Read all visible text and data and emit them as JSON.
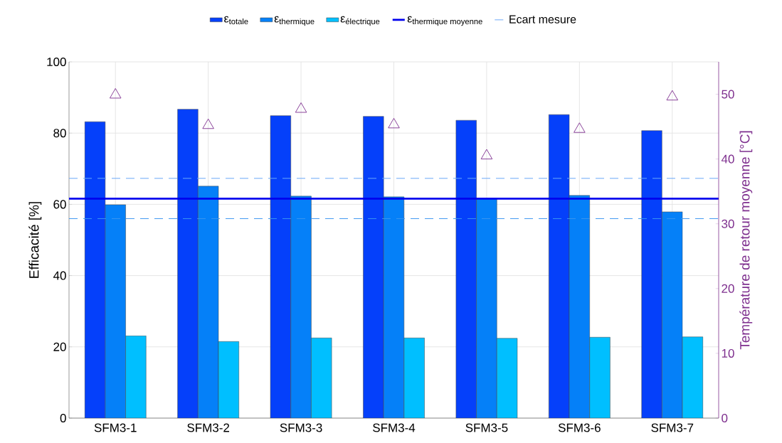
{
  "chart_data": {
    "type": "bar",
    "categories": [
      "SFM3-1",
      "SFM3-2",
      "SFM3-3",
      "SFM3-4",
      "SFM3-5",
      "SFM3-6",
      "SFM3-7"
    ],
    "ylabel": "Efficacité [%]",
    "y2label": "Température de retour moyenne [°C]",
    "ylim": [
      0,
      100
    ],
    "yticks": [
      0,
      20,
      40,
      60,
      80,
      100
    ],
    "y2lim": [
      0,
      55
    ],
    "y2ticks": [
      0,
      10,
      20,
      30,
      40,
      50
    ],
    "grid": true,
    "legend": "top",
    "series": [
      {
        "name": "\\text{ε}_{\\text{totale}}",
        "color": "#0540fa",
        "values": [
          83.2,
          86.7,
          84.9,
          84.7,
          83.6,
          85.2,
          80.7
        ]
      },
      {
        "name": "\\text{ε}_{\\text{thermique}}",
        "color": "#0580f8",
        "values": [
          59.9,
          65.1,
          62.3,
          62.1,
          61.7,
          62.5,
          57.9
        ]
      },
      {
        "name": "\\text{ε}_{\\text{électrique}}",
        "color": "#00bfff",
        "values": [
          23.1,
          21.5,
          22.5,
          22.5,
          22.4,
          22.7,
          22.8
        ]
      },
      {
        "type": "scatter",
        "axis": "y2",
        "marker": "triangle",
        "color": "#7e2f8e",
        "x": [
          "SFM3-1",
          "SFM3-2",
          "SFM3-3",
          "SFM3-4",
          "SFM3-5",
          "SFM3-6",
          "SFM3-7"
        ],
        "values": [
          49.9,
          45.2,
          47.7,
          45.3,
          40.5,
          44.6,
          49.6
        ]
      }
    ],
    "ref_lines": [
      {
        "axis": "y",
        "value": 61.6,
        "label": "\\text{ε}_{\\text{thermique moyenne}}",
        "color": "#0000ee",
        "line_style": "solid"
      },
      {
        "axis": "y",
        "value": 67.3,
        "label": "Ecart mesure",
        "color": "#6aa8f8",
        "line_style": "dashed"
      },
      {
        "axis": "y",
        "value": 56.0,
        "color": "#3a96f0",
        "line_style": "dashed"
      }
    ]
  }
}
